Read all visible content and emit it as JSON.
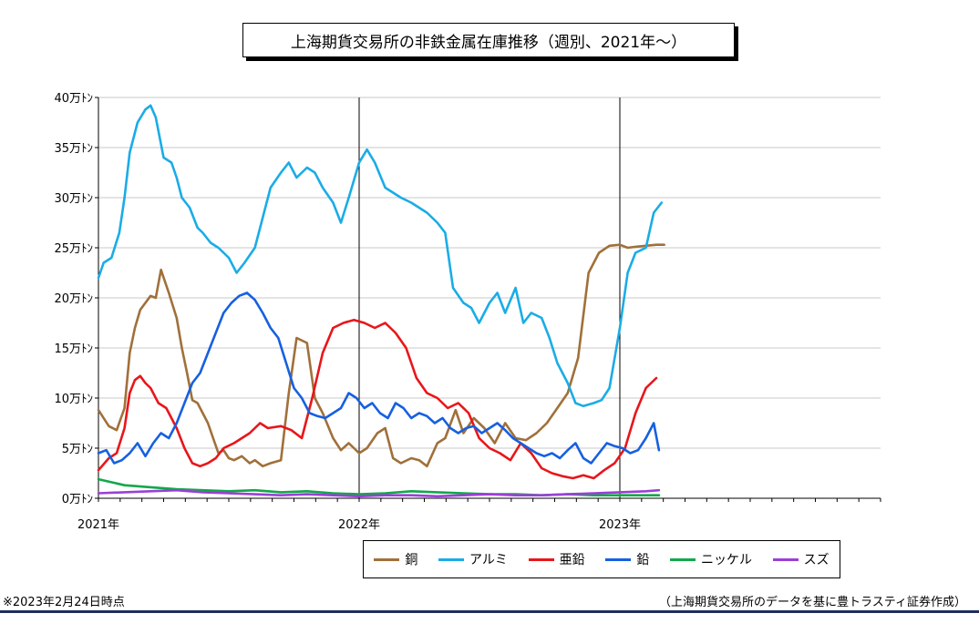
{
  "chart_data": {
    "type": "line",
    "title": "上海期貨交易所の非鉄金属在庫推移（週別、2021年〜）",
    "y_unit_suffix": "万ﾄﾝ",
    "ylim": [
      0,
      40
    ],
    "yticks": [
      0,
      5,
      10,
      15,
      20,
      25,
      30,
      35,
      40
    ],
    "ytick_labels": [
      "0万ﾄﾝ",
      "5万ﾄﾝ",
      "10万ﾄﾝ",
      "15万ﾄﾝ",
      "20万ﾄﾝ",
      "25万ﾄﾝ",
      "30万ﾄﾝ",
      "35万ﾄﾝ",
      "40万ﾄﾝ"
    ],
    "xlim": [
      0,
      3
    ],
    "xticks": [
      0,
      1,
      2
    ],
    "xtick_labels": [
      "2021年",
      "2022年",
      "2023年"
    ],
    "year_dividers": [
      1,
      2
    ],
    "grid": true,
    "legend_position": "bottom",
    "series": [
      {
        "name": "銅",
        "color": "#a0703a",
        "x": [
          0,
          0.04,
          0.07,
          0.1,
          0.12,
          0.14,
          0.16,
          0.18,
          0.2,
          0.22,
          0.24,
          0.27,
          0.3,
          0.32,
          0.34,
          0.36,
          0.38,
          0.4,
          0.42,
          0.44,
          0.46,
          0.48,
          0.5,
          0.52,
          0.55,
          0.58,
          0.6,
          0.63,
          0.66,
          0.7,
          0.73,
          0.76,
          0.8,
          0.83,
          0.86,
          0.9,
          0.93,
          0.96,
          1.0,
          1.03,
          1.07,
          1.1,
          1.13,
          1.16,
          1.2,
          1.23,
          1.26,
          1.3,
          1.33,
          1.37,
          1.4,
          1.44,
          1.48,
          1.52,
          1.56,
          1.6,
          1.64,
          1.68,
          1.72,
          1.76,
          1.8,
          1.84,
          1.88,
          1.92,
          1.96,
          2.0,
          2.03,
          2.06,
          2.1,
          2.14,
          2.17
        ],
        "y": [
          8.8,
          7.2,
          6.8,
          9.0,
          14.5,
          17.0,
          18.8,
          19.5,
          20.2,
          20.0,
          22.8,
          20.5,
          18.0,
          15.0,
          12.5,
          9.8,
          9.5,
          8.5,
          7.5,
          6.0,
          4.5,
          4.8,
          4.0,
          3.8,
          4.2,
          3.5,
          3.8,
          3.2,
          3.5,
          3.8,
          10.5,
          16.0,
          15.5,
          10.0,
          8.5,
          6.0,
          4.8,
          5.5,
          4.5,
          5.0,
          6.5,
          7.0,
          4.0,
          3.5,
          4.0,
          3.8,
          3.2,
          5.5,
          6.0,
          8.8,
          6.5,
          8.0,
          7.0,
          5.5,
          7.5,
          6.0,
          5.8,
          6.5,
          7.5,
          9.0,
          10.5,
          14.0,
          22.5,
          24.5,
          25.2,
          25.3,
          25.0,
          25.1,
          25.2,
          25.3,
          25.3
        ]
      },
      {
        "name": "アルミ",
        "color": "#1aace6",
        "x": [
          0,
          0.02,
          0.05,
          0.08,
          0.1,
          0.12,
          0.15,
          0.18,
          0.2,
          0.22,
          0.25,
          0.28,
          0.3,
          0.32,
          0.35,
          0.38,
          0.4,
          0.43,
          0.46,
          0.5,
          0.53,
          0.56,
          0.6,
          0.63,
          0.66,
          0.7,
          0.73,
          0.76,
          0.8,
          0.83,
          0.86,
          0.9,
          0.93,
          0.96,
          1.0,
          1.03,
          1.06,
          1.1,
          1.13,
          1.16,
          1.2,
          1.23,
          1.26,
          1.3,
          1.33,
          1.36,
          1.4,
          1.43,
          1.46,
          1.5,
          1.53,
          1.56,
          1.6,
          1.63,
          1.66,
          1.7,
          1.73,
          1.76,
          1.8,
          1.83,
          1.86,
          1.9,
          1.93,
          1.96,
          2.0,
          2.03,
          2.06,
          2.1,
          2.13,
          2.16
        ],
        "y": [
          22.0,
          23.5,
          24.0,
          26.5,
          30.0,
          34.5,
          37.5,
          38.8,
          39.2,
          38.0,
          34.0,
          33.5,
          32.0,
          30.0,
          29.0,
          27.0,
          26.5,
          25.5,
          25.0,
          24.0,
          22.5,
          23.5,
          25.0,
          28.0,
          31.0,
          32.5,
          33.5,
          32.0,
          33.0,
          32.5,
          31.0,
          29.5,
          27.5,
          30.0,
          33.5,
          34.8,
          33.5,
          31.0,
          30.5,
          30.0,
          29.5,
          29.0,
          28.5,
          27.5,
          26.5,
          21.0,
          19.5,
          19.0,
          17.5,
          19.5,
          20.5,
          18.5,
          21.0,
          17.5,
          18.5,
          18.0,
          16.0,
          13.5,
          11.5,
          9.5,
          9.2,
          9.5,
          9.8,
          11.0,
          17.0,
          22.5,
          24.5,
          25.0,
          28.5,
          29.5
        ]
      },
      {
        "name": "亜鉛",
        "color": "#e8161a",
        "x": [
          0,
          0.04,
          0.07,
          0.1,
          0.12,
          0.14,
          0.16,
          0.18,
          0.2,
          0.23,
          0.26,
          0.3,
          0.33,
          0.36,
          0.39,
          0.42,
          0.45,
          0.48,
          0.52,
          0.55,
          0.58,
          0.62,
          0.65,
          0.7,
          0.74,
          0.78,
          0.82,
          0.86,
          0.9,
          0.94,
          0.98,
          1.02,
          1.06,
          1.1,
          1.14,
          1.18,
          1.22,
          1.26,
          1.3,
          1.34,
          1.38,
          1.42,
          1.46,
          1.5,
          1.54,
          1.58,
          1.62,
          1.66,
          1.7,
          1.74,
          1.78,
          1.82,
          1.86,
          1.9,
          1.94,
          1.98,
          2.02,
          2.06,
          2.1,
          2.14
        ],
        "y": [
          2.8,
          4.0,
          4.5,
          7.0,
          10.5,
          11.8,
          12.2,
          11.5,
          11.0,
          9.5,
          9.0,
          7.0,
          5.0,
          3.5,
          3.2,
          3.5,
          4.0,
          5.0,
          5.5,
          6.0,
          6.5,
          7.5,
          7.0,
          7.2,
          6.8,
          6.0,
          10.0,
          14.5,
          17.0,
          17.5,
          17.8,
          17.5,
          17.0,
          17.5,
          16.5,
          15.0,
          12.0,
          10.5,
          10.0,
          9.0,
          9.5,
          8.5,
          6.0,
          5.0,
          4.5,
          3.8,
          5.5,
          4.5,
          3.0,
          2.5,
          2.2,
          2.0,
          2.3,
          2.0,
          2.8,
          3.5,
          5.0,
          8.5,
          11.0,
          12.0
        ]
      },
      {
        "name": "鉛",
        "color": "#1660e0",
        "x": [
          0,
          0.03,
          0.06,
          0.09,
          0.12,
          0.15,
          0.18,
          0.21,
          0.24,
          0.27,
          0.3,
          0.33,
          0.36,
          0.39,
          0.42,
          0.45,
          0.48,
          0.51,
          0.54,
          0.57,
          0.6,
          0.63,
          0.66,
          0.69,
          0.72,
          0.75,
          0.78,
          0.81,
          0.84,
          0.87,
          0.9,
          0.93,
          0.96,
          0.99,
          1.02,
          1.05,
          1.08,
          1.11,
          1.14,
          1.17,
          1.2,
          1.23,
          1.26,
          1.29,
          1.32,
          1.35,
          1.38,
          1.41,
          1.44,
          1.47,
          1.5,
          1.53,
          1.56,
          1.59,
          1.62,
          1.65,
          1.68,
          1.71,
          1.74,
          1.77,
          1.8,
          1.83,
          1.86,
          1.89,
          1.92,
          1.95,
          1.98,
          2.01,
          2.04,
          2.07,
          2.1,
          2.13,
          2.15
        ],
        "y": [
          4.5,
          4.8,
          3.5,
          3.8,
          4.5,
          5.5,
          4.2,
          5.5,
          6.5,
          6.0,
          7.5,
          9.5,
          11.5,
          12.5,
          14.5,
          16.5,
          18.5,
          19.5,
          20.2,
          20.5,
          19.8,
          18.5,
          17.0,
          16.0,
          13.5,
          11.0,
          10.0,
          8.5,
          8.2,
          8.0,
          8.5,
          9.0,
          10.5,
          10.0,
          9.0,
          9.5,
          8.5,
          8.0,
          9.5,
          9.0,
          8.0,
          8.5,
          8.2,
          7.5,
          8.0,
          7.0,
          6.5,
          7.0,
          7.2,
          6.5,
          7.0,
          7.5,
          6.8,
          6.0,
          5.5,
          5.0,
          4.5,
          4.2,
          4.5,
          4.0,
          4.8,
          5.5,
          4.0,
          3.5,
          4.5,
          5.5,
          5.2,
          5.0,
          4.5,
          4.8,
          6.0,
          7.5,
          4.8
        ]
      },
      {
        "name": "ニッケル",
        "color": "#11a84a",
        "x": [
          0,
          0.1,
          0.2,
          0.3,
          0.4,
          0.5,
          0.6,
          0.7,
          0.8,
          0.9,
          1.0,
          1.1,
          1.2,
          1.3,
          1.4,
          1.5,
          1.6,
          1.7,
          1.8,
          1.9,
          2.0,
          2.1,
          2.15
        ],
        "y": [
          1.9,
          1.3,
          1.1,
          0.9,
          0.8,
          0.7,
          0.8,
          0.6,
          0.7,
          0.5,
          0.4,
          0.5,
          0.7,
          0.6,
          0.5,
          0.4,
          0.4,
          0.3,
          0.4,
          0.3,
          0.3,
          0.3,
          0.3
        ]
      },
      {
        "name": "スズ",
        "color": "#9b3fd6",
        "x": [
          0,
          0.1,
          0.2,
          0.3,
          0.4,
          0.5,
          0.6,
          0.7,
          0.8,
          0.9,
          1.0,
          1.1,
          1.2,
          1.3,
          1.4,
          1.5,
          1.6,
          1.7,
          1.8,
          1.9,
          2.0,
          2.1,
          2.15
        ],
        "y": [
          0.5,
          0.6,
          0.7,
          0.8,
          0.6,
          0.5,
          0.4,
          0.3,
          0.4,
          0.3,
          0.2,
          0.3,
          0.3,
          0.2,
          0.3,
          0.4,
          0.3,
          0.3,
          0.4,
          0.5,
          0.6,
          0.7,
          0.8
        ]
      }
    ]
  },
  "notes": {
    "left": "※2023年2月24日時点",
    "right": "（上海期貨交易所のデータを基に豊トラスティ証券作成）"
  }
}
